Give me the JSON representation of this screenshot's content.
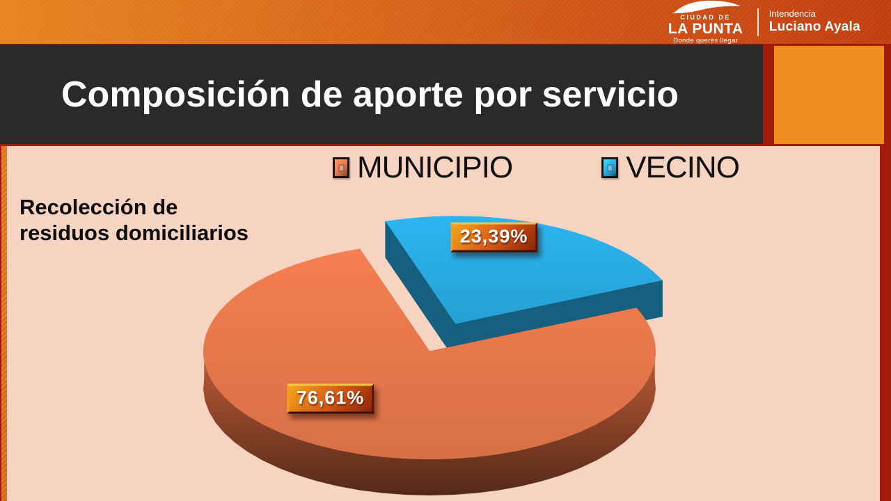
{
  "banner": {
    "logo": {
      "top": "CIUDAD DE",
      "name": "LA PUNTA",
      "tagline": "Donde querés llegar"
    },
    "intendencia": {
      "label": "Intendencia",
      "name": "Luciano Ayala"
    }
  },
  "title": "Composición de aporte por servicio",
  "chart_data": {
    "type": "pie",
    "title": "Recolección de residuos domiciliarios",
    "title_lines": [
      "Recolección de",
      "residuos domiciliarios"
    ],
    "legend_position": "top",
    "effect_3d": true,
    "start_angle_deg": -18,
    "legend": [
      {
        "label": "MUNICIPIO",
        "color": "#E7784B"
      },
      {
        "label": "VECINO",
        "color": "#29ACE3"
      }
    ],
    "slices": [
      {
        "name": "VECINO",
        "value": 23.39,
        "label": "23,39%",
        "color": "#29ACE3",
        "side_color": "#16607F",
        "explode": 0.28,
        "label_hint": {
          "deg": 12,
          "r": 0.82
        }
      },
      {
        "name": "MUNICIPIO",
        "value": 76.61,
        "label": "76,61%",
        "color": "#E7784B",
        "side_color": "#C6603A",
        "explode": 0,
        "label_hint": {
          "deg": 225,
          "r": 0.62
        }
      }
    ]
  },
  "colors": {
    "background_red": "#A21B0A",
    "banner_gradient_left": "#E8841F",
    "banner_gradient_right": "#C23C10",
    "titlebar_charcoal": "#2A2A2A",
    "accent_orange_box": "#EF8E1E",
    "content_pink": "#F7D3C2",
    "left_strip_orange": "#E2731C",
    "municipio_orange": "#E7784B",
    "vecino_blue": "#29ACE3",
    "plaque_gradient": [
      "#F4A51B",
      "#D85F19",
      "#8E2407"
    ]
  }
}
